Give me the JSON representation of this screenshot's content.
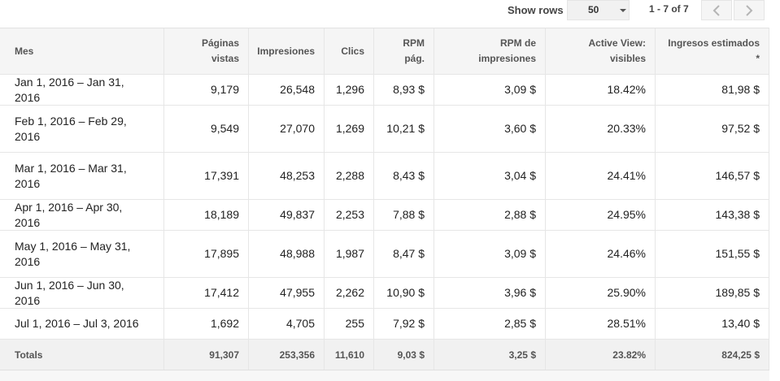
{
  "toolbar": {
    "show_rows_label": "Show rows",
    "rows_value": "50",
    "pager_text": "1 - 7 of 7"
  },
  "columns": [
    {
      "line1": "Mes",
      "line2": ""
    },
    {
      "line1": "Páginas",
      "line2": "vistas"
    },
    {
      "line1": "Impresiones",
      "line2": ""
    },
    {
      "line1": "Clics",
      "line2": ""
    },
    {
      "line1": "RPM",
      "line2": "pág."
    },
    {
      "line1": "RPM de",
      "line2": "impresiones"
    },
    {
      "line1": "Active View:",
      "line2": "visibles"
    },
    {
      "line1": "Ingresos estimados",
      "line2": "*"
    }
  ],
  "rows": [
    {
      "mes": "Jan 1, 2016 – Jan 31, 2016",
      "paginas": "9,179",
      "impresiones": "26,548",
      "clics": "1,296",
      "rpm_pag": "8,93 $",
      "rpm_imp": "3,09 $",
      "active_view": "18.42%",
      "ingresos": "81,98 $"
    },
    {
      "mes": "Feb 1, 2016 – Feb 29, 2016",
      "paginas": "9,549",
      "impresiones": "27,070",
      "clics": "1,269",
      "rpm_pag": "10,21 $",
      "rpm_imp": "3,60 $",
      "active_view": "20.33%",
      "ingresos": "97,52 $"
    },
    {
      "mes": "Mar 1, 2016 – Mar 31, 2016",
      "paginas": "17,391",
      "impresiones": "48,253",
      "clics": "2,288",
      "rpm_pag": "8,43 $",
      "rpm_imp": "3,04 $",
      "active_view": "24.41%",
      "ingresos": "146,57 $"
    },
    {
      "mes": "Apr 1, 2016 – Apr 30, 2016",
      "paginas": "18,189",
      "impresiones": "49,837",
      "clics": "2,253",
      "rpm_pag": "7,88 $",
      "rpm_imp": "2,88 $",
      "active_view": "24.95%",
      "ingresos": "143,38 $"
    },
    {
      "mes": "May 1, 2016 – May 31, 2016",
      "paginas": "17,895",
      "impresiones": "48,988",
      "clics": "1,987",
      "rpm_pag": "8,47 $",
      "rpm_imp": "3,09 $",
      "active_view": "24.46%",
      "ingresos": "151,55 $"
    },
    {
      "mes": "Jun 1, 2016 – Jun 30, 2016",
      "paginas": "17,412",
      "impresiones": "47,955",
      "clics": "2,262",
      "rpm_pag": "10,90 $",
      "rpm_imp": "3,96 $",
      "active_view": "25.90%",
      "ingresos": "189,85 $"
    },
    {
      "mes": "Jul 1, 2016 – Jul 3, 2016",
      "paginas": "1,692",
      "impresiones": "4,705",
      "clics": "255",
      "rpm_pag": "7,92 $",
      "rpm_imp": "2,85 $",
      "active_view": "28.51%",
      "ingresos": "13,40 $"
    }
  ],
  "totals": {
    "label": "Totals",
    "paginas": "91,307",
    "impresiones": "253,356",
    "clics": "11,610",
    "rpm_pag": "9,03 $",
    "rpm_imp": "3,25 $",
    "active_view": "23.82%",
    "ingresos": "824,25 $"
  },
  "icons": {
    "prev": "chevron-left-icon",
    "next": "chevron-right-icon",
    "dropdown": "caret-down-icon"
  }
}
